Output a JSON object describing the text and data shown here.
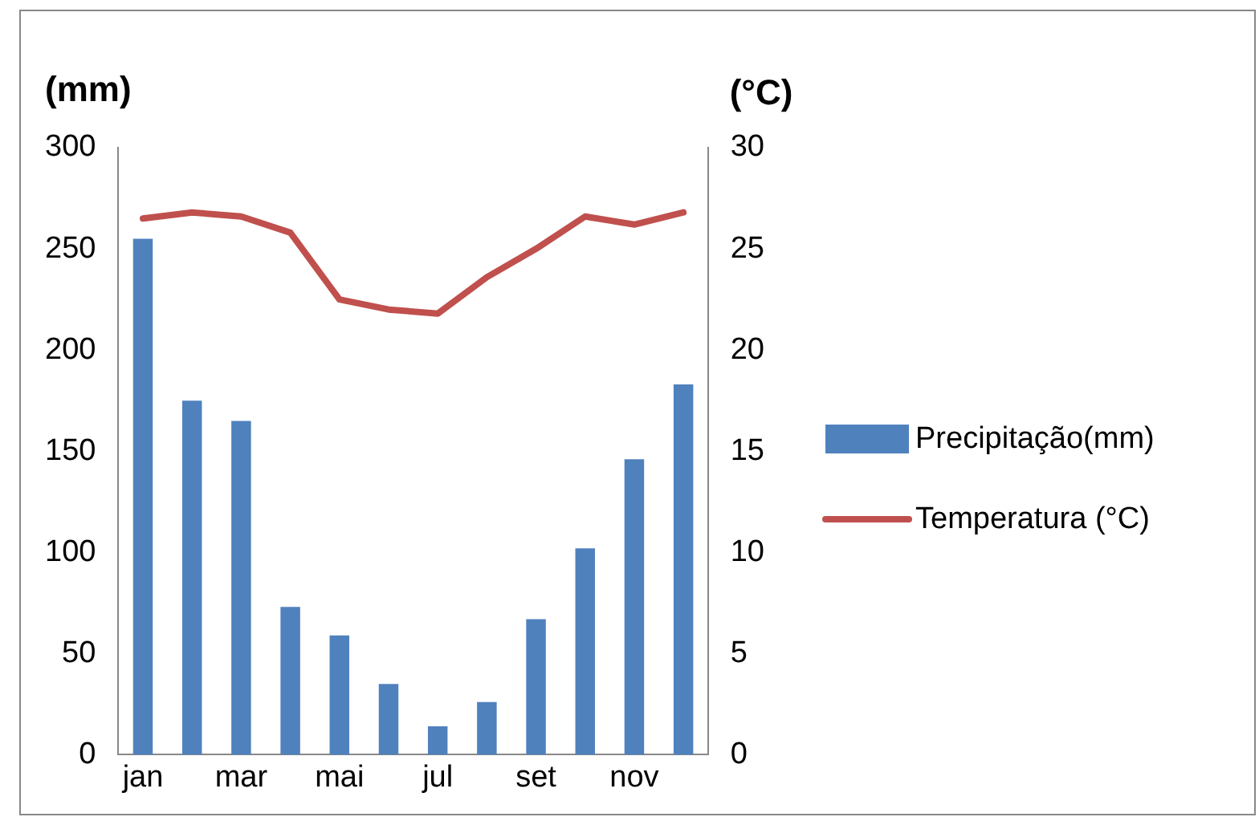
{
  "chart_data": {
    "type": "bar",
    "ylabel": "(mm)",
    "y2label": "(°C)",
    "categories": [
      "jan",
      null,
      "mar",
      null,
      "mai",
      null,
      "jul",
      null,
      "set",
      null,
      "nov",
      null
    ],
    "series": [
      {
        "name": "Precipitação(mm)",
        "color": "#4f81bd",
        "values": [
          255,
          175,
          165,
          73,
          59,
          35,
          14,
          26,
          67,
          102,
          146,
          183
        ]
      },
      {
        "name": "Temperatura (°C)",
        "type": "line",
        "axis": "y2",
        "color": "#c0504d",
        "values": [
          26.5,
          26.8,
          26.6,
          25.8,
          22.5,
          22.0,
          21.8,
          23.6,
          25.0,
          26.6,
          26.2,
          26.8
        ]
      }
    ],
    "ylim": [
      0,
      300
    ],
    "yticks": [
      0,
      50,
      100,
      150,
      200,
      250,
      300
    ],
    "y2lim": [
      0,
      30
    ],
    "y2ticks": [
      0,
      5,
      10,
      15,
      20,
      25,
      30
    ],
    "grid": false,
    "legend": "right",
    "marker": "none"
  }
}
